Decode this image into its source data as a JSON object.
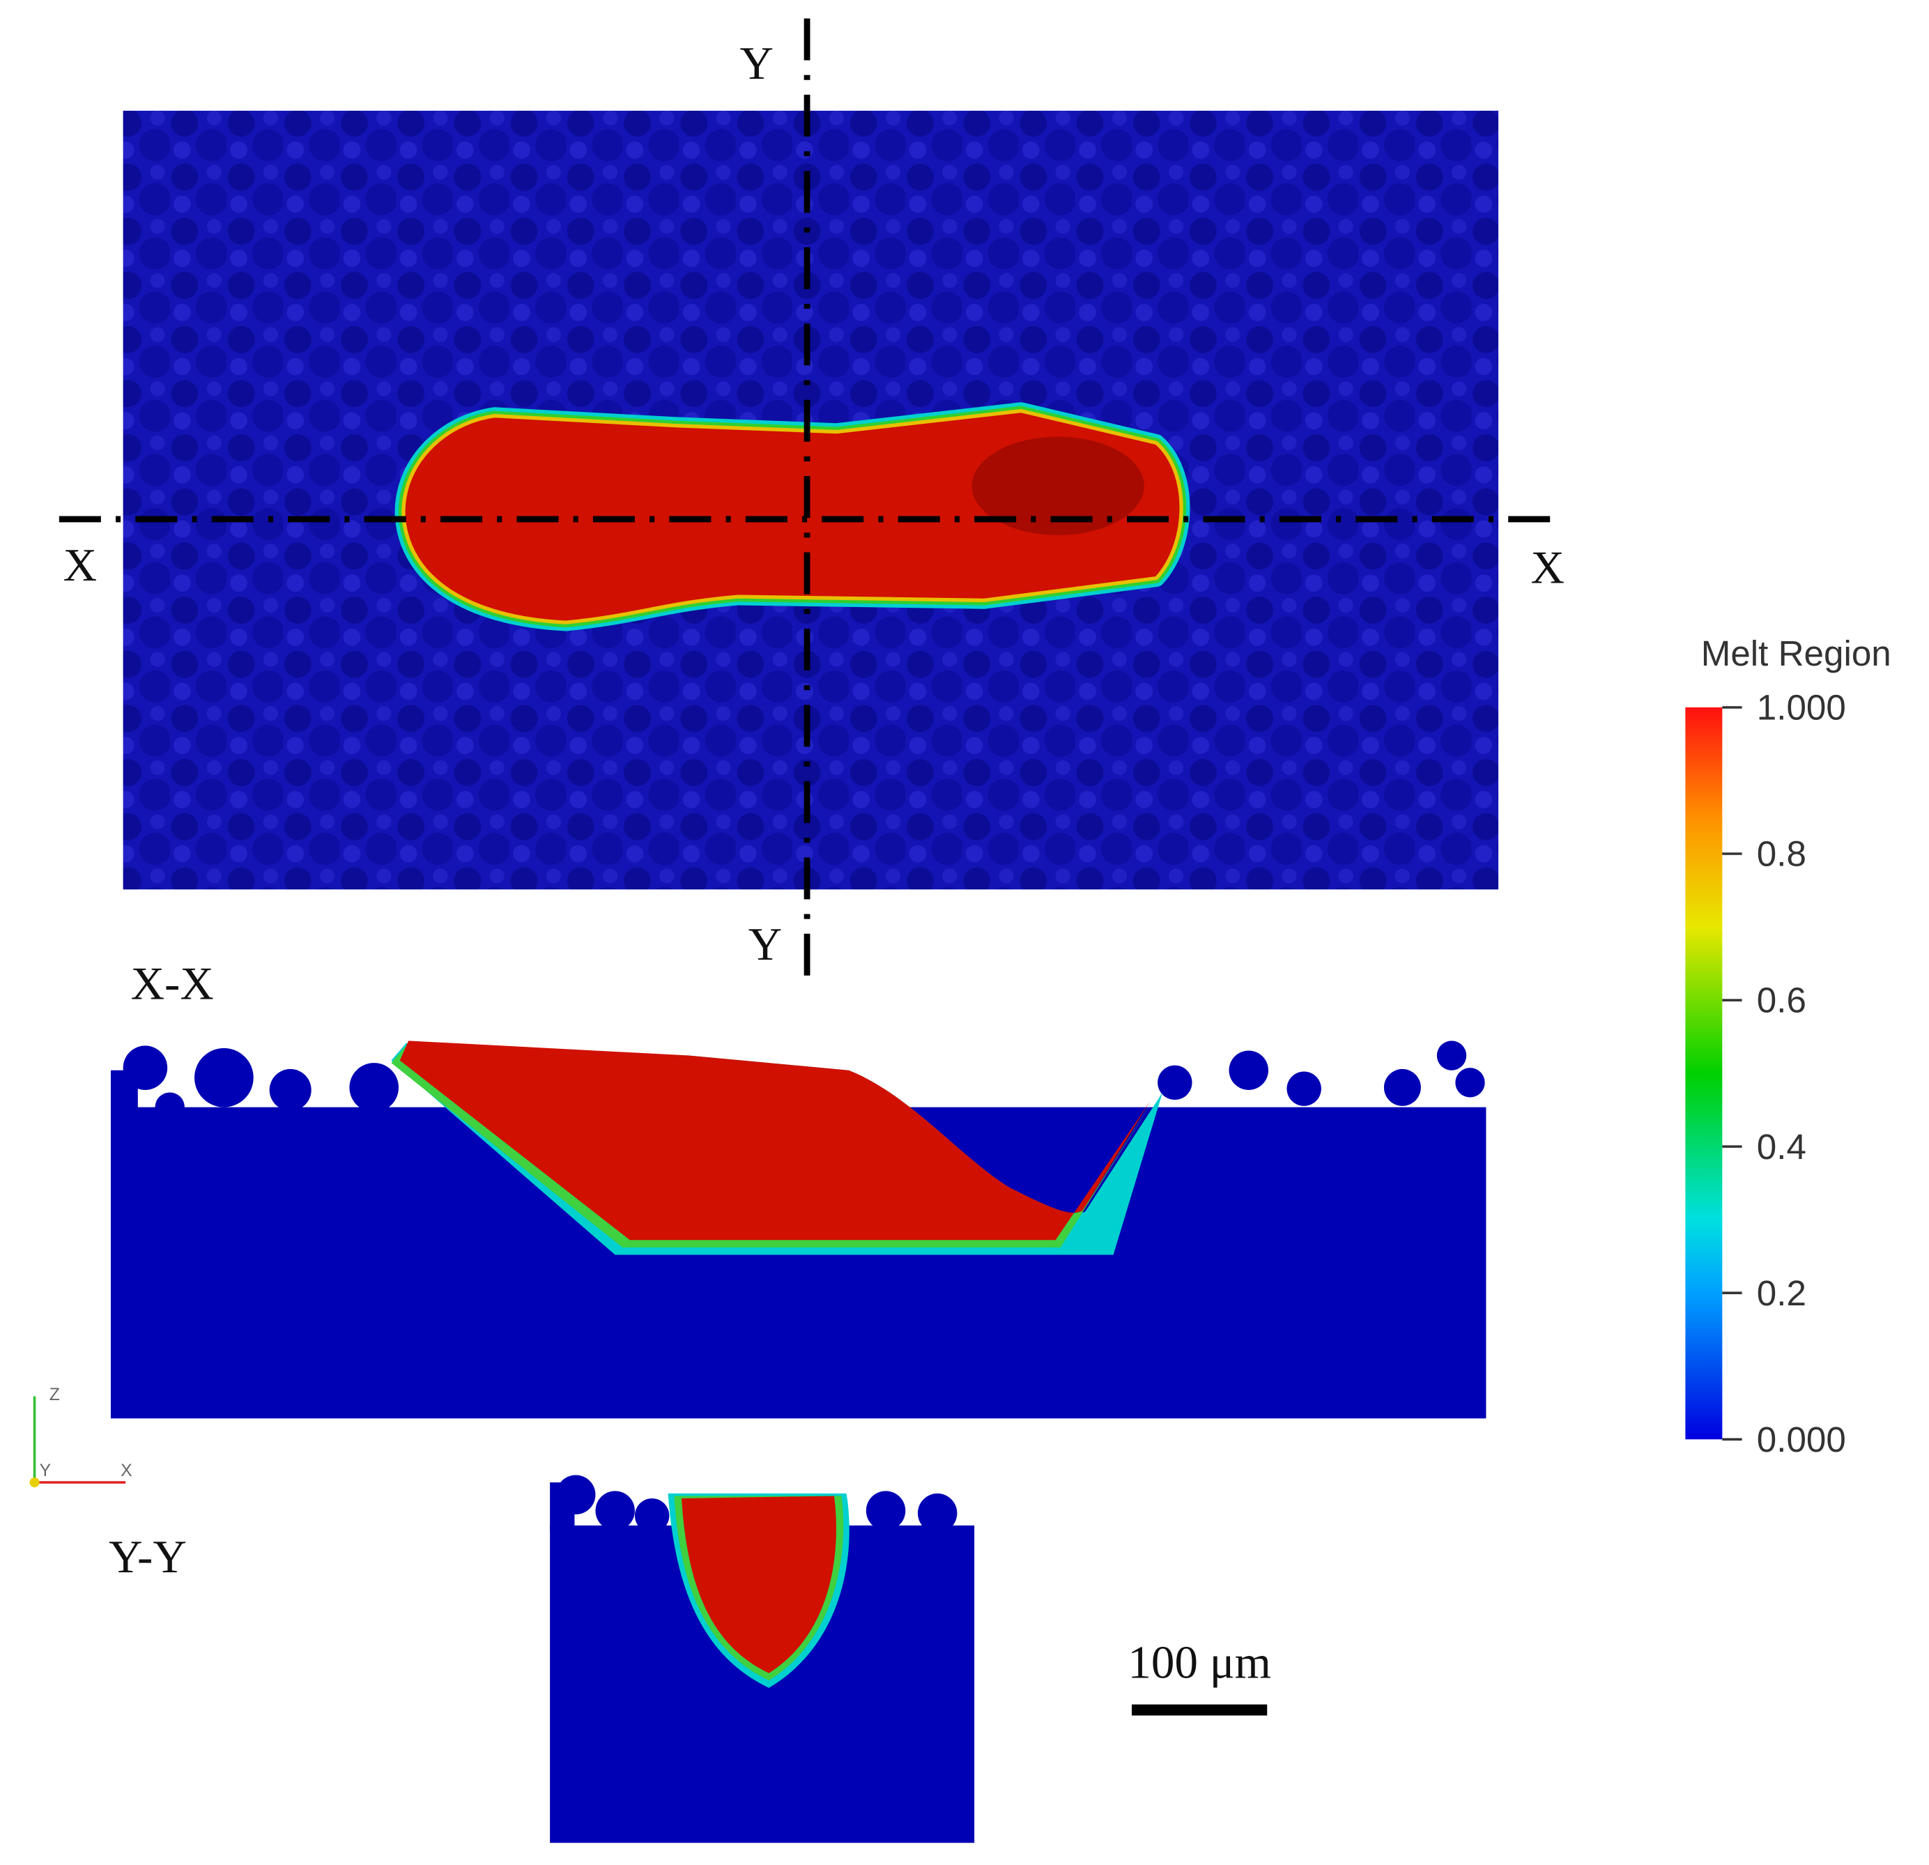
{
  "top_view": {
    "section_marks": {
      "y_top": "Y",
      "y_bottom": "Y",
      "x_left": "X",
      "x_right": "X"
    }
  },
  "sections": {
    "x_x": {
      "label": "X-X"
    },
    "y_y": {
      "label": "Y-Y"
    }
  },
  "axes_triad": {
    "z": "Z",
    "y": "Y",
    "x": "X"
  },
  "colorbar": {
    "title": "Melt Region",
    "range": [
      0,
      1
    ],
    "ticks": [
      {
        "value": 1,
        "label": "1.000"
      },
      0.8,
      0.6,
      0.4,
      0.2,
      {
        "value": 0,
        "label": "0.000"
      }
    ]
  },
  "scale_bar": {
    "label": "100 μm"
  }
}
